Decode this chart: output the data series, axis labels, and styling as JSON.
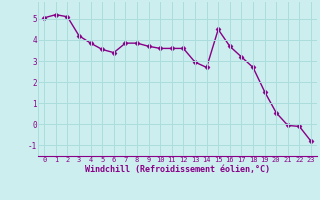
{
  "x": [
    0,
    1,
    2,
    3,
    4,
    5,
    6,
    7,
    8,
    9,
    10,
    11,
    12,
    13,
    14,
    15,
    16,
    17,
    18,
    19,
    20,
    21,
    22,
    23
  ],
  "y": [
    5.05,
    5.2,
    5.1,
    4.2,
    3.85,
    3.55,
    3.4,
    3.85,
    3.85,
    3.7,
    3.6,
    3.6,
    3.6,
    2.95,
    2.7,
    4.5,
    3.7,
    3.2,
    2.7,
    1.55,
    0.55,
    -0.05,
    -0.1,
    -0.8
  ],
  "line_color": "#880088",
  "marker": "D",
  "markersize": 2.5,
  "linewidth": 1.0,
  "bg_color": "#cceeee",
  "grid_color": "#aadddd",
  "xlabel": "Windchill (Refroidissement éolien,°C)",
  "xlabel_color": "#880088",
  "tick_color": "#880088",
  "ylim": [
    -1.5,
    5.8
  ],
  "xlim": [
    -0.5,
    23.5
  ],
  "yticks": [
    -1,
    0,
    1,
    2,
    3,
    4,
    5
  ],
  "xticks": [
    0,
    1,
    2,
    3,
    4,
    5,
    6,
    7,
    8,
    9,
    10,
    11,
    12,
    13,
    14,
    15,
    16,
    17,
    18,
    19,
    20,
    21,
    22,
    23
  ]
}
